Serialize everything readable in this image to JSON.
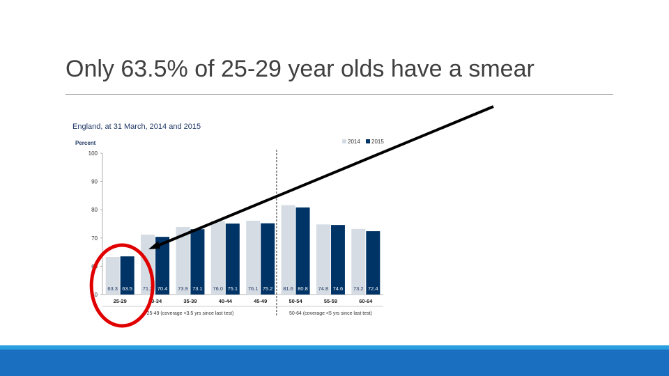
{
  "slide": {
    "title": "Only 63.5% of 25-29 year olds have a smear"
  },
  "chart_data": {
    "type": "bar",
    "subtitle": "England, at 31 March, 2014 and 2015",
    "ylabel": "Percent",
    "ylim": [
      50,
      100
    ],
    "yticks": [
      100,
      90,
      80,
      70,
      60,
      50
    ],
    "legend_position": "top-right",
    "categories": [
      "25-29",
      "30-34",
      "35-39",
      "40-44",
      "45-49",
      "50-54",
      "55-59",
      "60-64"
    ],
    "series": [
      {
        "name": "2014",
        "color": "#d6dce4",
        "values": [
          63.3,
          71.2,
          73.9,
          76.0,
          76.1,
          81.6,
          74.8,
          73.2
        ],
        "labels": [
          "63.3",
          "71.2",
          "73.9",
          "76.0",
          "76.1",
          "81.6",
          "74.8",
          "73.2"
        ]
      },
      {
        "name": "2015",
        "color": "#003366",
        "values": [
          63.5,
          70.4,
          73.1,
          75.1,
          75.2,
          80.8,
          74.6,
          72.4
        ],
        "labels": [
          "63.5",
          "70.4",
          "73.1",
          "75.1",
          "75.2",
          "80.8",
          "74.6",
          "72.4"
        ]
      }
    ],
    "group_labels": [
      {
        "text": "25-49 (coverage <3.5 yrs since last test)"
      },
      {
        "text": "50-64 (coverage <5 yrs since last test)"
      }
    ],
    "highlighted_category": "25-29",
    "annotation_color": "#e00000"
  }
}
